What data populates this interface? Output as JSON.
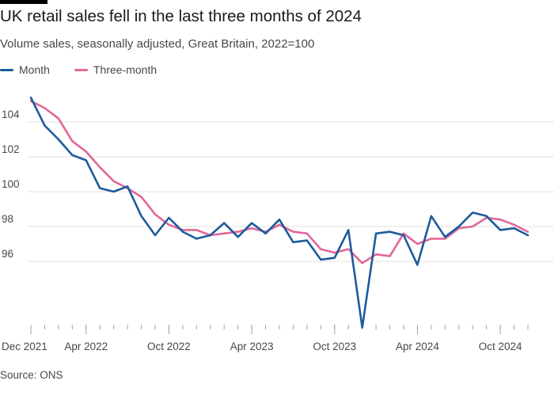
{
  "title": "UK retail sales fell in the last three months of 2024",
  "subtitle": "Volume sales, seasonally adjusted, Great Britain, 2022=100",
  "source": "Source: ONS",
  "colors": {
    "month": "#1d5b9c",
    "three_month": "#e2679a",
    "grid": "#e6e2df",
    "axis": "#a6a29f"
  },
  "chart_data": {
    "type": "line",
    "x": [
      "2021-12",
      "2022-01",
      "2022-02",
      "2022-03",
      "2022-04",
      "2022-05",
      "2022-06",
      "2022-07",
      "2022-08",
      "2022-09",
      "2022-10",
      "2022-11",
      "2022-12",
      "2023-01",
      "2023-02",
      "2023-03",
      "2023-04",
      "2023-05",
      "2023-06",
      "2023-07",
      "2023-08",
      "2023-09",
      "2023-10",
      "2023-11",
      "2023-12",
      "2024-01",
      "2024-02",
      "2024-03",
      "2024-04",
      "2024-05",
      "2024-06",
      "2024-07",
      "2024-08",
      "2024-09",
      "2024-10",
      "2024-11",
      "2024-12"
    ],
    "series": [
      {
        "name": "Month",
        "color": "#1d5b9c",
        "values": [
          105.4,
          103.8,
          103.0,
          102.1,
          101.8,
          100.2,
          100.0,
          100.3,
          98.6,
          97.5,
          98.5,
          97.7,
          97.3,
          97.5,
          98.2,
          97.4,
          98.2,
          97.6,
          98.4,
          97.1,
          97.2,
          96.1,
          96.2,
          97.8,
          92.2,
          97.6,
          97.7,
          97.5,
          95.8,
          98.6,
          97.4,
          98.0,
          98.8,
          98.6,
          97.8,
          97.9,
          97.5
        ]
      },
      {
        "name": "Three-month",
        "color": "#e2679a",
        "values": [
          105.2,
          104.8,
          104.2,
          102.9,
          102.3,
          101.4,
          100.6,
          100.2,
          99.7,
          98.7,
          98.1,
          97.8,
          97.8,
          97.5,
          97.6,
          97.7,
          97.9,
          97.7,
          98.1,
          97.7,
          97.6,
          96.7,
          96.5,
          96.7,
          95.9,
          96.4,
          96.3,
          97.6,
          97.0,
          97.3,
          97.3,
          97.9,
          98.0,
          98.5,
          98.4,
          98.1,
          97.7
        ]
      }
    ],
    "legend": "top-left",
    "ylim": [
      92,
      106
    ],
    "yticks": [
      "96",
      "98",
      "100",
      "102",
      "104"
    ],
    "xticks": [
      {
        "label": "Dec 2021",
        "x": "2021-12"
      },
      {
        "label": "Apr 2022",
        "x": "2022-04"
      },
      {
        "label": "Oct 2022",
        "x": "2022-10"
      },
      {
        "label": "Apr 2023",
        "x": "2023-04"
      },
      {
        "label": "Oct 2023",
        "x": "2023-10"
      },
      {
        "label": "Apr 2024",
        "x": "2024-04"
      },
      {
        "label": "Oct 2024",
        "x": "2024-10"
      }
    ],
    "grid": true
  }
}
